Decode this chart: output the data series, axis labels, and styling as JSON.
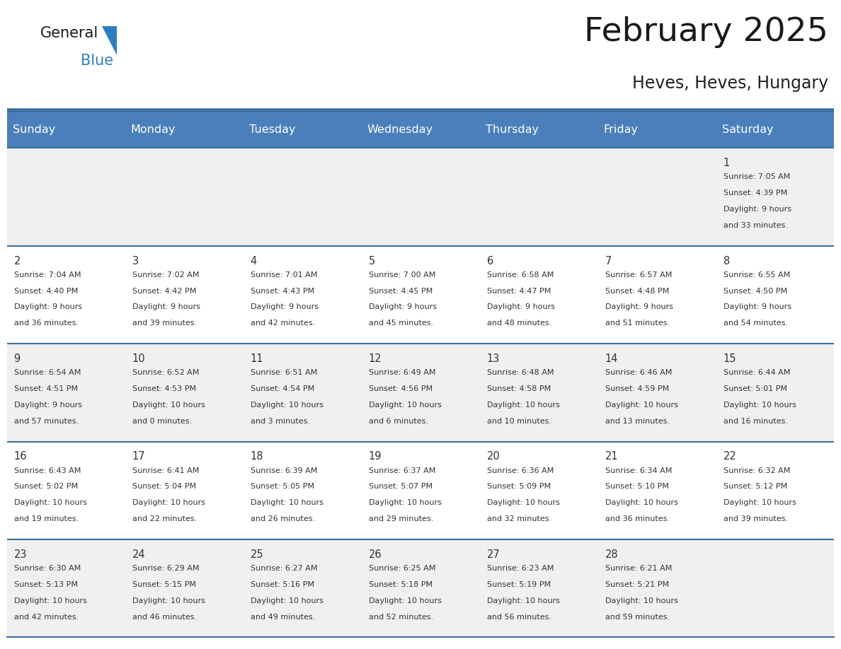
{
  "title": "February 2025",
  "subtitle": "Heves, Heves, Hungary",
  "days_of_week": [
    "Sunday",
    "Monday",
    "Tuesday",
    "Wednesday",
    "Thursday",
    "Friday",
    "Saturday"
  ],
  "header_bg": "#4a7fbb",
  "header_text": "#ffffff",
  "row_bg_odd": "#f0f0f0",
  "row_bg_even": "#ffffff",
  "border_color": "#3a6fa0",
  "day_number_color": "#333333",
  "info_text_color": "#333333",
  "title_color": "#1a1a1a",
  "subtitle_color": "#222222",
  "logo_general_color": "#1a1a1a",
  "logo_blue_color": "#2a7fc4",
  "calendar_data": [
    {
      "day": 1,
      "col": 6,
      "row": 0,
      "sunrise": "7:05 AM",
      "sunset": "4:39 PM",
      "daylight": "9 hours and 33 minutes."
    },
    {
      "day": 2,
      "col": 0,
      "row": 1,
      "sunrise": "7:04 AM",
      "sunset": "4:40 PM",
      "daylight": "9 hours and 36 minutes."
    },
    {
      "day": 3,
      "col": 1,
      "row": 1,
      "sunrise": "7:02 AM",
      "sunset": "4:42 PM",
      "daylight": "9 hours and 39 minutes."
    },
    {
      "day": 4,
      "col": 2,
      "row": 1,
      "sunrise": "7:01 AM",
      "sunset": "4:43 PM",
      "daylight": "9 hours and 42 minutes."
    },
    {
      "day": 5,
      "col": 3,
      "row": 1,
      "sunrise": "7:00 AM",
      "sunset": "4:45 PM",
      "daylight": "9 hours and 45 minutes."
    },
    {
      "day": 6,
      "col": 4,
      "row": 1,
      "sunrise": "6:58 AM",
      "sunset": "4:47 PM",
      "daylight": "9 hours and 48 minutes."
    },
    {
      "day": 7,
      "col": 5,
      "row": 1,
      "sunrise": "6:57 AM",
      "sunset": "4:48 PM",
      "daylight": "9 hours and 51 minutes."
    },
    {
      "day": 8,
      "col": 6,
      "row": 1,
      "sunrise": "6:55 AM",
      "sunset": "4:50 PM",
      "daylight": "9 hours and 54 minutes."
    },
    {
      "day": 9,
      "col": 0,
      "row": 2,
      "sunrise": "6:54 AM",
      "sunset": "4:51 PM",
      "daylight": "9 hours and 57 minutes."
    },
    {
      "day": 10,
      "col": 1,
      "row": 2,
      "sunrise": "6:52 AM",
      "sunset": "4:53 PM",
      "daylight": "10 hours and 0 minutes."
    },
    {
      "day": 11,
      "col": 2,
      "row": 2,
      "sunrise": "6:51 AM",
      "sunset": "4:54 PM",
      "daylight": "10 hours and 3 minutes."
    },
    {
      "day": 12,
      "col": 3,
      "row": 2,
      "sunrise": "6:49 AM",
      "sunset": "4:56 PM",
      "daylight": "10 hours and 6 minutes."
    },
    {
      "day": 13,
      "col": 4,
      "row": 2,
      "sunrise": "6:48 AM",
      "sunset": "4:58 PM",
      "daylight": "10 hours and 10 minutes."
    },
    {
      "day": 14,
      "col": 5,
      "row": 2,
      "sunrise": "6:46 AM",
      "sunset": "4:59 PM",
      "daylight": "10 hours and 13 minutes."
    },
    {
      "day": 15,
      "col": 6,
      "row": 2,
      "sunrise": "6:44 AM",
      "sunset": "5:01 PM",
      "daylight": "10 hours and 16 minutes."
    },
    {
      "day": 16,
      "col": 0,
      "row": 3,
      "sunrise": "6:43 AM",
      "sunset": "5:02 PM",
      "daylight": "10 hours and 19 minutes."
    },
    {
      "day": 17,
      "col": 1,
      "row": 3,
      "sunrise": "6:41 AM",
      "sunset": "5:04 PM",
      "daylight": "10 hours and 22 minutes."
    },
    {
      "day": 18,
      "col": 2,
      "row": 3,
      "sunrise": "6:39 AM",
      "sunset": "5:05 PM",
      "daylight": "10 hours and 26 minutes."
    },
    {
      "day": 19,
      "col": 3,
      "row": 3,
      "sunrise": "6:37 AM",
      "sunset": "5:07 PM",
      "daylight": "10 hours and 29 minutes."
    },
    {
      "day": 20,
      "col": 4,
      "row": 3,
      "sunrise": "6:36 AM",
      "sunset": "5:09 PM",
      "daylight": "10 hours and 32 minutes."
    },
    {
      "day": 21,
      "col": 5,
      "row": 3,
      "sunrise": "6:34 AM",
      "sunset": "5:10 PM",
      "daylight": "10 hours and 36 minutes."
    },
    {
      "day": 22,
      "col": 6,
      "row": 3,
      "sunrise": "6:32 AM",
      "sunset": "5:12 PM",
      "daylight": "10 hours and 39 minutes."
    },
    {
      "day": 23,
      "col": 0,
      "row": 4,
      "sunrise": "6:30 AM",
      "sunset": "5:13 PM",
      "daylight": "10 hours and 42 minutes."
    },
    {
      "day": 24,
      "col": 1,
      "row": 4,
      "sunrise": "6:29 AM",
      "sunset": "5:15 PM",
      "daylight": "10 hours and 46 minutes."
    },
    {
      "day": 25,
      "col": 2,
      "row": 4,
      "sunrise": "6:27 AM",
      "sunset": "5:16 PM",
      "daylight": "10 hours and 49 minutes."
    },
    {
      "day": 26,
      "col": 3,
      "row": 4,
      "sunrise": "6:25 AM",
      "sunset": "5:18 PM",
      "daylight": "10 hours and 52 minutes."
    },
    {
      "day": 27,
      "col": 4,
      "row": 4,
      "sunrise": "6:23 AM",
      "sunset": "5:19 PM",
      "daylight": "10 hours and 56 minutes."
    },
    {
      "day": 28,
      "col": 5,
      "row": 4,
      "sunrise": "6:21 AM",
      "sunset": "5:21 PM",
      "daylight": "10 hours and 59 minutes."
    }
  ]
}
